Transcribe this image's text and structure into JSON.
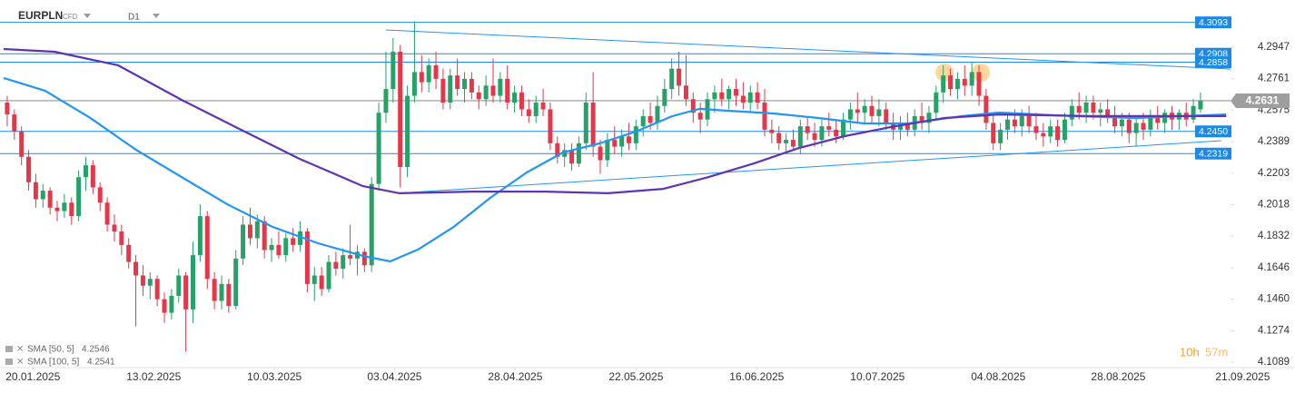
{
  "chart_data": {
    "type": "candlestick",
    "symbol": "EURPLN",
    "instrument": "CFD",
    "timeframe": "D1",
    "up_color": "#26a269",
    "down_color": "#e5364a",
    "xlim": [
      -0.5,
      171.2
    ],
    "ylim": [
      4.1046,
      4.3225
    ],
    "yticks": [
      4.2947,
      4.2761,
      {
        "value": 4.2575,
        "label": "4.2575"
      },
      4.2389,
      4.2203,
      4.2018,
      4.1832,
      4.1646,
      {
        "value": 4.146,
        "label": "4.1460"
      },
      4.1274,
      4.1089
    ],
    "xticks": [
      {
        "value": 3.6,
        "label": "20.01.2025"
      },
      {
        "value": 20.5,
        "label": "13.02.2025"
      },
      {
        "value": 37.4,
        "label": "10.03.2025"
      },
      {
        "value": 54.2,
        "label": "03.04.2025"
      },
      {
        "value": 71.1,
        "label": "28.04.2025"
      },
      {
        "value": 88.0,
        "label": "22.05.2025"
      },
      {
        "value": 104.9,
        "label": "16.06.2025"
      },
      {
        "value": 121.8,
        "label": "10.07.2025"
      },
      {
        "value": 138.7,
        "label": "04.08.2025"
      },
      {
        "value": 155.5,
        "label": "28.08.2025"
      },
      {
        "value": 172.9,
        "label": "21.09.2025"
      }
    ],
    "ohlc": [
      [
        4.262,
        4.266,
        4.248,
        4.255
      ],
      [
        4.255,
        4.258,
        4.24,
        4.245
      ],
      [
        4.245,
        4.248,
        4.225,
        4.23
      ],
      [
        4.23,
        4.234,
        4.21,
        4.215
      ],
      [
        4.215,
        4.22,
        4.2,
        4.205
      ],
      [
        4.205,
        4.214,
        4.2,
        4.21
      ],
      [
        4.21,
        4.212,
        4.196,
        4.2
      ],
      [
        4.2,
        4.204,
        4.192,
        4.198
      ],
      [
        4.198,
        4.208,
        4.194,
        4.203
      ],
      [
        4.203,
        4.206,
        4.19,
        4.195
      ],
      [
        4.195,
        4.222,
        4.192,
        4.218
      ],
      [
        4.218,
        4.23,
        4.21,
        4.225
      ],
      [
        4.225,
        4.228,
        4.208,
        4.212
      ],
      [
        4.212,
        4.215,
        4.198,
        4.203
      ],
      [
        4.203,
        4.206,
        4.186,
        4.19
      ],
      [
        4.19,
        4.196,
        4.18,
        4.186
      ],
      [
        4.186,
        4.19,
        4.172,
        4.178
      ],
      [
        4.178,
        4.182,
        4.164,
        4.168
      ],
      [
        4.168,
        4.172,
        4.13,
        4.16
      ],
      [
        4.16,
        4.166,
        4.148,
        4.154
      ],
      [
        4.154,
        4.162,
        4.146,
        4.158
      ],
      [
        4.158,
        4.16,
        4.142,
        4.146
      ],
      [
        4.146,
        4.15,
        4.132,
        4.138
      ],
      [
        4.138,
        4.152,
        4.134,
        4.148
      ],
      [
        4.148,
        4.164,
        4.144,
        4.16
      ],
      [
        4.16,
        4.162,
        4.115,
        4.14
      ],
      [
        4.14,
        4.18,
        4.132,
        4.172
      ],
      [
        4.172,
        4.202,
        4.168,
        4.195
      ],
      [
        4.195,
        4.198,
        4.152,
        4.158
      ],
      [
        4.158,
        4.162,
        4.14,
        4.145
      ],
      [
        4.145,
        4.16,
        4.14,
        4.155
      ],
      [
        4.155,
        4.158,
        4.138,
        4.142
      ],
      [
        4.142,
        4.175,
        4.14,
        4.17
      ],
      [
        4.17,
        4.195,
        4.166,
        4.19
      ],
      [
        4.19,
        4.2,
        4.178,
        4.182
      ],
      [
        4.182,
        4.196,
        4.176,
        4.192
      ],
      [
        4.192,
        4.195,
        4.17,
        4.175
      ],
      [
        4.175,
        4.182,
        4.168,
        4.178
      ],
      [
        4.178,
        4.186,
        4.17,
        4.172
      ],
      [
        4.172,
        4.185,
        4.168,
        4.182
      ],
      [
        4.182,
        4.188,
        4.174,
        4.178
      ],
      [
        4.178,
        4.192,
        4.174,
        4.186
      ],
      [
        4.186,
        4.188,
        4.15,
        4.155
      ],
      [
        4.155,
        4.165,
        4.145,
        4.16
      ],
      [
        4.16,
        4.165,
        4.148,
        4.152
      ],
      [
        4.152,
        4.172,
        4.15,
        4.168
      ],
      [
        4.168,
        4.174,
        4.16,
        4.164
      ],
      [
        4.164,
        4.176,
        4.158,
        4.172
      ],
      [
        4.172,
        4.19,
        4.166,
        4.17
      ],
      [
        4.17,
        4.178,
        4.16,
        4.174
      ],
      [
        4.174,
        4.176,
        4.162,
        4.166
      ],
      [
        4.166,
        4.218,
        4.162,
        4.214
      ],
      [
        4.214,
        4.262,
        4.21,
        4.256
      ],
      [
        4.256,
        4.292,
        4.25,
        4.27
      ],
      [
        4.27,
        4.3,
        4.262,
        4.292
      ],
      [
        4.292,
        4.296,
        4.212,
        4.224
      ],
      [
        4.224,
        4.272,
        4.218,
        4.266
      ],
      [
        4.266,
        4.31,
        4.262,
        4.28
      ],
      [
        4.28,
        4.29,
        4.268,
        4.274
      ],
      [
        4.274,
        4.288,
        4.268,
        4.284
      ],
      [
        4.284,
        4.292,
        4.27,
        4.276
      ],
      [
        4.276,
        4.282,
        4.258,
        4.262
      ],
      [
        4.262,
        4.282,
        4.258,
        4.278
      ],
      [
        4.278,
        4.288,
        4.266,
        4.27
      ],
      [
        4.27,
        4.28,
        4.262,
        4.276
      ],
      [
        4.276,
        4.28,
        4.264,
        4.268
      ],
      [
        4.268,
        4.272,
        4.258,
        4.264
      ],
      [
        4.264,
        4.278,
        4.26,
        4.272
      ],
      [
        4.272,
        4.288,
        4.262,
        4.266
      ],
      [
        4.266,
        4.28,
        4.262,
        4.276
      ],
      [
        4.276,
        4.284,
        4.258,
        4.262
      ],
      [
        4.262,
        4.272,
        4.256,
        4.268
      ],
      [
        4.268,
        4.272,
        4.254,
        4.258
      ],
      [
        4.258,
        4.264,
        4.25,
        4.254
      ],
      [
        4.254,
        4.266,
        4.25,
        4.262
      ],
      [
        4.262,
        4.27,
        4.254,
        4.258
      ],
      [
        4.258,
        4.262,
        4.234,
        4.238
      ],
      [
        4.238,
        4.242,
        4.226,
        4.23
      ],
      [
        4.23,
        4.238,
        4.224,
        4.234
      ],
      [
        4.234,
        4.238,
        4.222,
        4.226
      ],
      [
        4.226,
        4.242,
        4.224,
        4.238
      ],
      [
        4.238,
        4.268,
        4.234,
        4.262
      ],
      [
        4.262,
        4.28,
        4.23,
        4.236
      ],
      [
        4.236,
        4.24,
        4.22,
        4.228
      ],
      [
        4.228,
        4.244,
        4.224,
        4.24
      ],
      [
        4.24,
        4.248,
        4.232,
        4.236
      ],
      [
        4.236,
        4.246,
        4.23,
        4.242
      ],
      [
        4.242,
        4.25,
        4.234,
        4.238
      ],
      [
        4.238,
        4.252,
        4.234,
        4.248
      ],
      [
        4.248,
        4.258,
        4.242,
        4.254
      ],
      [
        4.254,
        4.262,
        4.246,
        4.25
      ],
      [
        4.25,
        4.266,
        4.246,
        4.26
      ],
      [
        4.26,
        4.276,
        4.256,
        4.27
      ],
      [
        4.27,
        4.288,
        4.264,
        4.282
      ],
      [
        4.282,
        4.292,
        4.266,
        4.272
      ],
      [
        4.272,
        4.29,
        4.26,
        4.264
      ],
      [
        4.264,
        4.268,
        4.25,
        4.256
      ],
      [
        4.256,
        4.262,
        4.244,
        4.252
      ],
      [
        4.252,
        4.268,
        4.248,
        4.264
      ],
      [
        4.264,
        4.272,
        4.256,
        4.268
      ],
      [
        4.268,
        4.276,
        4.26,
        4.264
      ],
      [
        4.264,
        4.272,
        4.258,
        4.27
      ],
      [
        4.27,
        4.276,
        4.26,
        4.266
      ],
      [
        4.266,
        4.274,
        4.258,
        4.262
      ],
      [
        4.262,
        4.272,
        4.256,
        4.268
      ],
      [
        4.268,
        4.274,
        4.258,
        4.262
      ],
      [
        4.262,
        4.27,
        4.242,
        4.246
      ],
      [
        4.246,
        4.252,
        4.238,
        4.244
      ],
      [
        4.244,
        4.248,
        4.234,
        4.238
      ],
      [
        4.238,
        4.244,
        4.232,
        4.24
      ],
      [
        4.24,
        4.246,
        4.234,
        4.236
      ],
      [
        4.236,
        4.252,
        4.232,
        4.248
      ],
      [
        4.248,
        4.254,
        4.24,
        4.244
      ],
      [
        4.244,
        4.25,
        4.236,
        4.24
      ],
      [
        4.24,
        4.252,
        4.236,
        4.248
      ],
      [
        4.248,
        4.256,
        4.242,
        4.246
      ],
      [
        4.246,
        4.252,
        4.238,
        4.242
      ],
      [
        4.242,
        4.256,
        4.24,
        4.252
      ],
      [
        4.252,
        4.262,
        4.246,
        4.258
      ],
      [
        4.258,
        4.268,
        4.25,
        4.256
      ],
      [
        4.256,
        4.264,
        4.25,
        4.26
      ],
      [
        4.26,
        4.266,
        4.25,
        4.254
      ],
      [
        4.254,
        4.264,
        4.248,
        4.258
      ],
      [
        4.258,
        4.262,
        4.246,
        4.25
      ],
      [
        4.25,
        4.256,
        4.24,
        4.246
      ],
      [
        4.246,
        4.254,
        4.24,
        4.25
      ],
      [
        4.25,
        4.256,
        4.242,
        4.246
      ],
      [
        4.246,
        4.258,
        4.242,
        4.254
      ],
      [
        4.254,
        4.262,
        4.246,
        4.25
      ],
      [
        4.25,
        4.26,
        4.244,
        4.256
      ],
      [
        4.256,
        4.272,
        4.252,
        4.268
      ],
      [
        4.268,
        4.284,
        4.262,
        4.278
      ],
      [
        4.278,
        4.282,
        4.266,
        4.27
      ],
      [
        4.27,
        4.28,
        4.264,
        4.276
      ],
      [
        4.276,
        4.284,
        4.266,
        4.272
      ],
      [
        4.272,
        4.286,
        4.266,
        4.28
      ],
      [
        4.28,
        4.284,
        4.26,
        4.266
      ],
      [
        4.266,
        4.27,
        4.246,
        4.25
      ],
      [
        4.25,
        4.254,
        4.234,
        4.238
      ],
      [
        4.238,
        4.25,
        4.234,
        4.246
      ],
      [
        4.246,
        4.256,
        4.24,
        4.252
      ],
      [
        4.252,
        4.258,
        4.244,
        4.248
      ],
      [
        4.248,
        4.258,
        4.242,
        4.254
      ],
      [
        4.254,
        4.26,
        4.244,
        4.248
      ],
      [
        4.248,
        4.256,
        4.24,
        4.244
      ],
      [
        4.244,
        4.25,
        4.236,
        4.242
      ],
      [
        4.242,
        4.252,
        4.238,
        4.248
      ],
      [
        4.248,
        4.252,
        4.236,
        4.24
      ],
      [
        4.24,
        4.256,
        4.238,
        4.252
      ],
      [
        4.252,
        4.264,
        4.248,
        4.26
      ],
      [
        4.26,
        4.268,
        4.252,
        4.256
      ],
      [
        4.256,
        4.266,
        4.25,
        4.262
      ],
      [
        4.262,
        4.266,
        4.252,
        4.256
      ],
      [
        4.256,
        4.262,
        4.248,
        4.258
      ],
      [
        4.258,
        4.264,
        4.25,
        4.254
      ],
      [
        4.254,
        4.26,
        4.244,
        4.248
      ],
      [
        4.248,
        4.256,
        4.242,
        4.252
      ],
      [
        4.252,
        4.256,
        4.238,
        4.244
      ],
      [
        4.244,
        4.254,
        4.236,
        4.25
      ],
      [
        4.25,
        4.256,
        4.24,
        4.246
      ],
      [
        4.246,
        4.258,
        4.242,
        4.254
      ],
      [
        4.254,
        4.26,
        4.246,
        4.25
      ],
      [
        4.25,
        4.258,
        4.244,
        4.256
      ],
      [
        4.256,
        4.26,
        4.246,
        4.252
      ],
      [
        4.252,
        4.258,
        4.246,
        4.256
      ],
      [
        4.256,
        4.262,
        4.248,
        4.252
      ],
      [
        4.252,
        4.264,
        4.25,
        4.26
      ],
      [
        4.258,
        4.268,
        4.256,
        4.263
      ]
    ],
    "series": [
      {
        "name": "SMA [50, 5]",
        "current": 4.2546,
        "color": "#2196f3",
        "x": [
          -0.5,
          5.3,
          11.6,
          18,
          24.4,
          30.8,
          37.1,
          43.5,
          49.8,
          53.6,
          57.5,
          62.5,
          67.6,
          72.7,
          77.8,
          82.9,
          88,
          93.1,
          96.9,
          100.8,
          107.2,
          113.5,
          119.9,
          126.1,
          133.7,
          138.8,
          149,
          157.9,
          170.6
        ],
        "values": [
          4.2765,
          4.269,
          4.253,
          4.2342,
          4.2181,
          4.202,
          4.1887,
          4.179,
          4.1715,
          4.1683,
          4.1753,
          4.1887,
          4.2058,
          4.2208,
          4.2326,
          4.2379,
          4.2449,
          4.254,
          4.2583,
          4.2572,
          4.2556,
          4.2529,
          4.2497,
          4.2497,
          4.254,
          4.2561,
          4.254,
          4.2529,
          4.255
        ]
      },
      {
        "name": "SMA [100, 5]",
        "current": 4.2541,
        "color": "#5e35b1",
        "x": [
          -0.5,
          6.6,
          15.5,
          24.4,
          32,
          40.9,
          49.8,
          54.9,
          65.1,
          75.2,
          84.1,
          91.8,
          98.1,
          104.5,
          110.8,
          117.2,
          123.6,
          131.2,
          138.8,
          151.5,
          170.6
        ],
        "values": [
          4.2936,
          4.292,
          4.284,
          4.2636,
          4.2475,
          4.2288,
          4.2127,
          4.2085,
          4.2095,
          4.2095,
          4.2085,
          4.2111,
          4.218,
          4.2261,
          4.2352,
          4.2422,
          4.2475,
          4.2529,
          4.255,
          4.254,
          4.254
        ]
      }
    ],
    "trendlines": [
      {
        "color": "#2196f3",
        "x": [
          53,
          171.2
        ],
        "y": [
          4.3048,
          4.2818
        ]
      },
      {
        "color": "#2196f3",
        "x": [
          54.5,
          169.9
        ],
        "y": [
          4.2085,
          4.2395
        ]
      }
    ],
    "levels": [
      4.3093,
      {
        "value": 4.2908,
        "label": "4.2908"
      },
      4.2858,
      {
        "value": 4.245,
        "label": "4.2450"
      },
      4.2319
    ],
    "level_color": "#1e88e5",
    "last_price": 4.2631,
    "last_price_color": "#9e9e9e",
    "countdown": [
      "10h",
      "57m"
    ]
  }
}
